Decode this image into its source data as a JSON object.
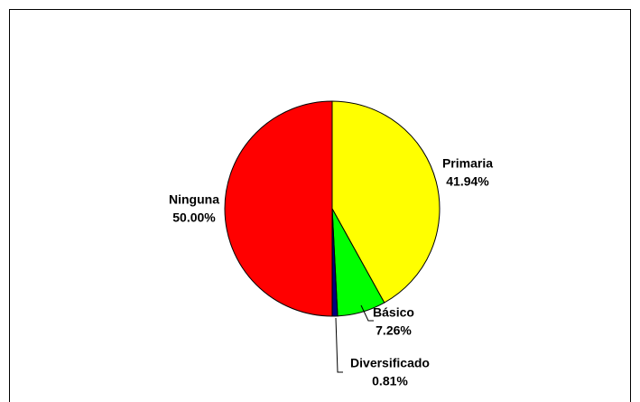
{
  "chart_data": {
    "type": "pie",
    "categories": [
      "Primaria",
      "Básico",
      "Diversificado",
      "Ninguna"
    ],
    "values": [
      41.94,
      7.26,
      0.81,
      50.0
    ],
    "value_labels": [
      "41.94%",
      "7.26%",
      "0.81%",
      "50.00%"
    ],
    "colors": [
      "#ffff00",
      "#00ff00",
      "#000080",
      "#ff0000"
    ]
  }
}
